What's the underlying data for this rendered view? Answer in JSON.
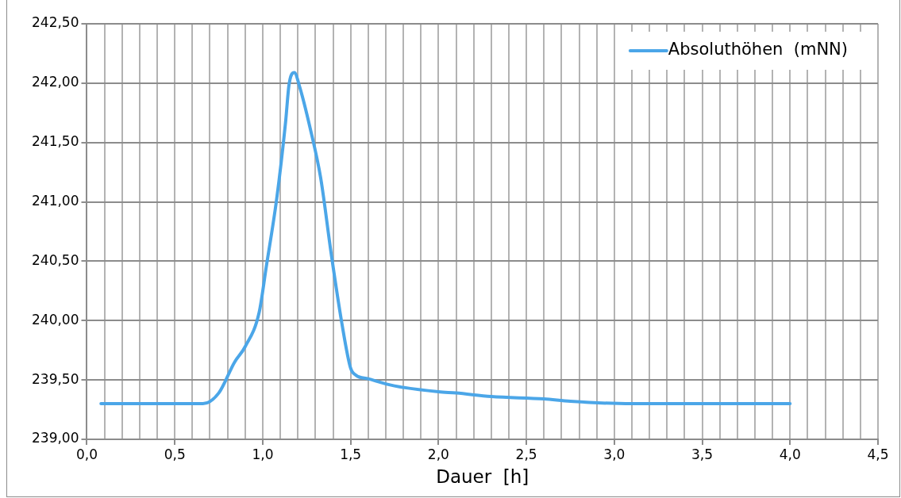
{
  "chart_data": {
    "type": "line",
    "xlabel": "Dauer  [h]",
    "legend": "top right",
    "grid": true,
    "marker": "none",
    "line_style": "solid",
    "xlim": [
      0,
      4.5
    ],
    "xticks": [
      {
        "value": 0,
        "label": "0,0"
      },
      {
        "value": 0.1,
        "label": null
      },
      {
        "value": 0.2,
        "label": null
      },
      {
        "value": 0.3,
        "label": null
      },
      {
        "value": 0.4,
        "label": null
      },
      {
        "value": 0.5,
        "label": "0,5"
      },
      {
        "value": 0.6,
        "label": null
      },
      {
        "value": 0.7,
        "label": null
      },
      {
        "value": 0.8,
        "label": null
      },
      {
        "value": 0.9,
        "label": null
      },
      {
        "value": 1,
        "label": "1,0"
      },
      {
        "value": 1.1,
        "label": null
      },
      {
        "value": 1.2,
        "label": null
      },
      {
        "value": 1.3,
        "label": null
      },
      {
        "value": 1.4,
        "label": null
      },
      {
        "value": 1.5,
        "label": "1,5"
      },
      {
        "value": 1.6,
        "label": null
      },
      {
        "value": 1.7,
        "label": null
      },
      {
        "value": 1.8,
        "label": null
      },
      {
        "value": 1.9,
        "label": null
      },
      {
        "value": 2,
        "label": "2,0"
      },
      {
        "value": 2.1,
        "label": null
      },
      {
        "value": 2.2,
        "label": null
      },
      {
        "value": 2.3,
        "label": null
      },
      {
        "value": 2.4,
        "label": null
      },
      {
        "value": 2.5,
        "label": "2,5"
      },
      {
        "value": 2.6,
        "label": null
      },
      {
        "value": 2.7,
        "label": null
      },
      {
        "value": 2.8,
        "label": null
      },
      {
        "value": 2.9,
        "label": null
      },
      {
        "value": 3,
        "label": "3,0"
      },
      {
        "value": 3.1,
        "label": null
      },
      {
        "value": 3.2,
        "label": null
      },
      {
        "value": 3.3,
        "label": null
      },
      {
        "value": 3.4,
        "label": null
      },
      {
        "value": 3.5,
        "label": "3,5"
      },
      {
        "value": 3.6,
        "label": null
      },
      {
        "value": 3.7,
        "label": null
      },
      {
        "value": 3.8,
        "label": null
      },
      {
        "value": 3.9,
        "label": null
      },
      {
        "value": 4,
        "label": "4,0"
      },
      {
        "value": 4.1,
        "label": null
      },
      {
        "value": 4.2,
        "label": null
      },
      {
        "value": 4.3,
        "label": null
      },
      {
        "value": 4.4,
        "label": null
      },
      {
        "value": 4.5,
        "label": "4,5"
      }
    ],
    "ylim": [
      239,
      242.5
    ],
    "yticks": [
      {
        "value": 239,
        "label": "239,00"
      },
      {
        "value": 239.5,
        "label": "239,50"
      },
      {
        "value": 240,
        "label": "240,00"
      },
      {
        "value": 240.5,
        "label": "240,50"
      },
      {
        "value": 241,
        "label": "241,00"
      },
      {
        "value": 241.5,
        "label": "241,50"
      },
      {
        "value": 242,
        "label": "242,00"
      },
      {
        "value": 242.5,
        "label": "242,50"
      }
    ],
    "series": [
      {
        "name": "Absoluthöhen  (mNN)",
        "color": "#4ba6e8",
        "x": [
          0.08,
          0.3,
          0.5,
          0.66,
          0.75,
          0.84,
          0.9,
          0.98,
          1.02,
          1.08,
          1.13,
          1.15,
          1.18,
          1.21,
          1.27,
          1.33,
          1.39,
          1.45,
          1.5,
          1.53,
          1.6,
          1.75,
          2.0,
          2.1,
          2.3,
          2.6,
          2.75,
          3.1,
          3.5,
          4.0
        ],
        "values": [
          239.3,
          239.3,
          239.3,
          239.3,
          239.39,
          239.65,
          239.78,
          240.07,
          240.45,
          241.03,
          241.67,
          241.99,
          242.09,
          241.97,
          241.62,
          241.2,
          240.56,
          239.98,
          239.6,
          239.54,
          239.51,
          239.45,
          239.4,
          239.39,
          239.36,
          239.34,
          239.32,
          239.3,
          239.3,
          239.3
        ]
      }
    ]
  }
}
